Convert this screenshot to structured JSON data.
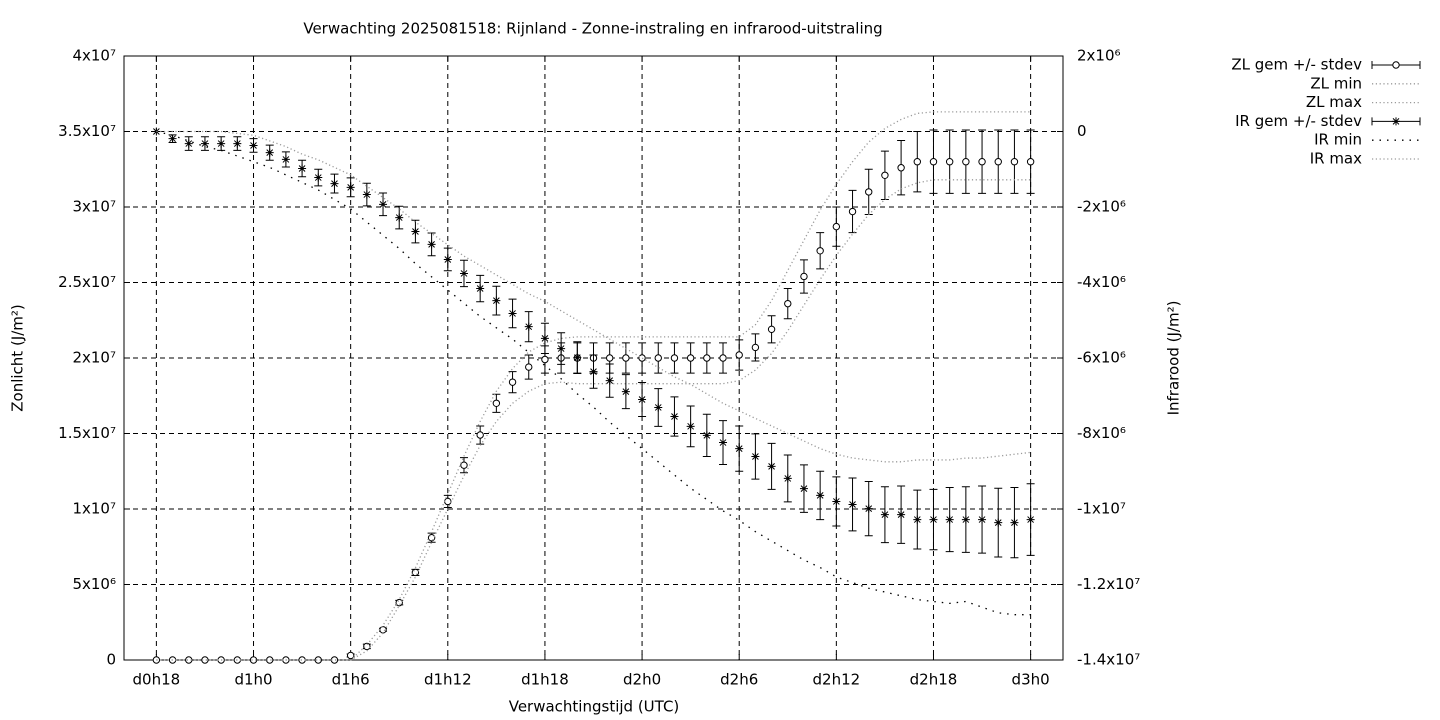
{
  "chart_data": {
    "type": "errorbar-line",
    "title": "Verwachting 2025081518: Rijnland - Zonne-instraling en infrarood-uitstraling",
    "xlabel": "Verwachtingstijd (UTC)",
    "ylabel": "Zonlicht (J/m²)",
    "y2label": "Infrarood (J/m²)",
    "xlim": [
      16,
      74
    ],
    "xticks": [
      {
        "value": 18,
        "label": "d0h18"
      },
      {
        "value": 24,
        "label": "d1h0"
      },
      {
        "value": 30,
        "label": "d1h6"
      },
      {
        "value": 36,
        "label": "d1h12"
      },
      {
        "value": 42,
        "label": "d1h18"
      },
      {
        "value": 48,
        "label": "d2h0"
      },
      {
        "value": 54,
        "label": "d2h6"
      },
      {
        "value": 60,
        "label": "d2h12"
      },
      {
        "value": 66,
        "label": "d2h18"
      },
      {
        "value": 72,
        "label": "d3h0"
      }
    ],
    "ylim": [
      0,
      40000000.0
    ],
    "yticks": [
      0,
      {
        "value": 5000000.0,
        "label": "5x10⁶"
      },
      {
        "value": 10000000.0,
        "label": "1x10⁷"
      },
      {
        "value": 15000000.0,
        "label": "1.5x10⁷"
      },
      {
        "value": 20000000.0,
        "label": "2x10⁷"
      },
      {
        "value": 25000000.0,
        "label": "2.5x10⁷"
      },
      {
        "value": 30000000.0,
        "label": "3x10⁷"
      },
      {
        "value": 35000000.0,
        "label": "3.5x10⁷"
      },
      {
        "value": 40000000.0,
        "label": "4x10⁷"
      }
    ],
    "y2lim": [
      -14000000.0,
      2000000.0
    ],
    "y2ticks": [
      {
        "value": -14000000.0,
        "label": "-1.4x10⁷"
      },
      {
        "value": -12000000.0,
        "label": "-1.2x10⁷"
      },
      {
        "value": -10000000.0,
        "label": "-1x10⁷"
      },
      {
        "value": -8000000.0,
        "label": "-8x10⁶"
      },
      {
        "value": -6000000.0,
        "label": "-6x10⁶"
      },
      {
        "value": -4000000.0,
        "label": "-4x10⁶"
      },
      {
        "value": -2000000.0,
        "label": "-2x10⁶"
      },
      0,
      {
        "value": 2000000.0,
        "label": "2x10⁶"
      }
    ],
    "grid": true,
    "legend": "top-right",
    "x": [
      18,
      19,
      20,
      21,
      22,
      23,
      24,
      25,
      26,
      27,
      28,
      29,
      30,
      31,
      32,
      33,
      34,
      35,
      36,
      37,
      38,
      39,
      40,
      41,
      42,
      43,
      44,
      45,
      46,
      47,
      48,
      49,
      50,
      51,
      52,
      53,
      54,
      55,
      56,
      57,
      58,
      59,
      60,
      61,
      62,
      63,
      64,
      65,
      66,
      67,
      68,
      69,
      70,
      71,
      72
    ],
    "series": [
      {
        "name": "ZL gem +/- stdev",
        "color": "#000000",
        "marker": "circle",
        "values": [
          0,
          0,
          0,
          0,
          0,
          0,
          0,
          0,
          0,
          0,
          0,
          0,
          300000.0,
          900000.0,
          2000000.0,
          3800000.0,
          5800000.0,
          8100000.0,
          10500000.0,
          12900000.0,
          14900000.0,
          17000000.0,
          18400000.0,
          19400000.0,
          19900000.0,
          20000000.0,
          20000000.0,
          20000000.0,
          20000000.0,
          20000000.0,
          20000000.0,
          20000000.0,
          20000000.0,
          20000000.0,
          20000000.0,
          20000000.0,
          20200000.0,
          20700000.0,
          21900000.0,
          23600000.0,
          25400000.0,
          27100000.0,
          28700000.0,
          29700000.0,
          31000000.0,
          32100000.0,
          32600000.0,
          33000000.0,
          33000000.0,
          33000000.0,
          33000000.0,
          33000000.0,
          33000000.0,
          33000000.0,
          33000000.0
        ],
        "errors": [
          0,
          0,
          0,
          0,
          0,
          0,
          0,
          0,
          0,
          0,
          0,
          0,
          100000.0,
          150000.0,
          100000.0,
          150000.0,
          200000.0,
          300000.0,
          400000.0,
          500000.0,
          600000.0,
          600000.0,
          700000.0,
          800000.0,
          900000.0,
          1000000.0,
          1000000.0,
          1000000.0,
          1000000.0,
          1000000.0,
          1000000.0,
          1000000.0,
          1000000.0,
          1000000.0,
          1000000.0,
          1000000.0,
          1000000.0,
          900000.0,
          900000.0,
          1000000.0,
          1100000.0,
          1200000.0,
          1300000.0,
          1400000.0,
          1500000.0,
          1600000.0,
          1800000.0,
          2000000.0,
          2100000.0,
          2100000.0,
          2100000.0,
          2100000.0,
          2100000.0,
          2100000.0,
          2100000.0
        ]
      },
      {
        "name": "ZL min",
        "color": "#9a9a9a",
        "dash": "dotted",
        "values": [
          0,
          0,
          0,
          0,
          0,
          0,
          0,
          0,
          0,
          0,
          0,
          0,
          0,
          600000.0,
          1800000.0,
          3600000.0,
          5500000.0,
          7800000.0,
          10000000.0,
          12200000.0,
          14200000.0,
          15800000.0,
          17000000.0,
          17800000.0,
          18300000.0,
          18400000.0,
          18300000.0,
          18300000.0,
          18300000.0,
          18300000.0,
          18300000.0,
          18300000.0,
          18300000.0,
          18300000.0,
          18300000.0,
          18300000.0,
          18500000.0,
          19200000.0,
          20300000.0,
          21800000.0,
          23500000.0,
          25200000.0,
          26800000.0,
          28200000.0,
          29500000.0,
          30500000.0,
          31200000.0,
          31600000.0,
          31800000.0,
          31800000.0,
          31800000.0,
          31800000.0,
          31800000.0,
          31800000.0,
          31800000.0
        ]
      },
      {
        "name": "ZL max",
        "color": "#9a9a9a",
        "dash": "dotted",
        "values": [
          0,
          0,
          0,
          0,
          0,
          0,
          0,
          0,
          0,
          0,
          0,
          0,
          0,
          1000000.0,
          2300000.0,
          4000000.0,
          6100000.0,
          8500000.0,
          11000000.0,
          13500000.0,
          15800000.0,
          17800000.0,
          19300000.0,
          20400000.0,
          21000000.0,
          21300000.0,
          21400000.0,
          21400000.0,
          21400000.0,
          21400000.0,
          21400000.0,
          21400000.0,
          21400000.0,
          21400000.0,
          21400000.0,
          21400000.0,
          21400000.0,
          22200000.0,
          23800000.0,
          25800000.0,
          27800000.0,
          29800000.0,
          31500000.0,
          33000000.0,
          34300000.0,
          35200000.0,
          35800000.0,
          36200000.0,
          36300000.0,
          36300000.0,
          36300000.0,
          36300000.0,
          36300000.0,
          36300000.0,
          36300000.0
        ]
      },
      {
        "name": "IR gem +/- stdev",
        "color": "#000000",
        "marker": "star",
        "axis": "y2",
        "values": [
          0,
          -190000.0,
          -320000.0,
          -320000.0,
          -320000.0,
          -320000.0,
          -370000.0,
          -560000.0,
          -740000.0,
          -980000.0,
          -1220000.0,
          -1380000.0,
          -1480000.0,
          -1670000.0,
          -1930000.0,
          -2280000.0,
          -2650000.0,
          -2990000.0,
          -3390000.0,
          -3760000.0,
          -4160000.0,
          -4480000.0,
          -4820000.0,
          -5170000.0,
          -5480000.0,
          -5750000.0,
          -5990000.0,
          -6360000.0,
          -6600000.0,
          -6890000.0,
          -7100000.0,
          -7310000.0,
          -7550000.0,
          -7810000.0,
          -8050000.0,
          -8240000.0,
          -8400000.0,
          -8610000.0,
          -8870000.0,
          -9190000.0,
          -9460000.0,
          -9640000.0,
          -9800000.0,
          -9880000.0,
          -9990000.0,
          -10150000.0,
          -10150000.0,
          -10280000.0,
          -10280000.0,
          -10280000.0,
          -10280000.0,
          -10280000.0,
          -10360000.0,
          -10360000.0,
          -10280000.0
        ],
        "errors": [
          0,
          100000.0,
          180000.0,
          180000.0,
          180000.0,
          180000.0,
          180000.0,
          200000.0,
          200000.0,
          220000.0,
          220000.0,
          250000.0,
          250000.0,
          300000.0,
          300000.0,
          300000.0,
          300000.0,
          300000.0,
          300000.0,
          350000.0,
          350000.0,
          380000.0,
          380000.0,
          400000.0,
          400000.0,
          420000.0,
          420000.0,
          440000.0,
          440000.0,
          450000.0,
          450000.0,
          500000.0,
          520000.0,
          540000.0,
          560000.0,
          580000.0,
          600000.0,
          600000.0,
          610000.0,
          620000.0,
          630000.0,
          640000.0,
          650000.0,
          700000.0,
          720000.0,
          740000.0,
          760000.0,
          780000.0,
          800000.0,
          850000.0,
          870000.0,
          890000.0,
          910000.0,
          930000.0,
          950000.0
        ]
      },
      {
        "name": "IR min",
        "color": "#000000",
        "dash": "sparse",
        "axis": "y2",
        "values": [
          0,
          -100000.0,
          -250000.0,
          -400000.0,
          -500000.0,
          -650000.0,
          -800000.0,
          -950000.0,
          -1150000.0,
          -1350000.0,
          -1550000.0,
          -1800000.0,
          -2050000.0,
          -2400000.0,
          -2750000.0,
          -3100000.0,
          -3500000.0,
          -3850000.0,
          -4200000.0,
          -4550000.0,
          -4900000.0,
          -5200000.0,
          -5500000.0,
          -5850000.0,
          -6200000.0,
          -6550000.0,
          -6950000.0,
          -7300000.0,
          -7700000.0,
          -8050000.0,
          -8400000.0,
          -8750000.0,
          -9100000.0,
          -9450000.0,
          -9750000.0,
          -10050000.0,
          -10300000.0,
          -10600000.0,
          -10850000.0,
          -11100000.0,
          -11350000.0,
          -11550000.0,
          -11800000.0,
          -11950000.0,
          -12100000.0,
          -12200000.0,
          -12300000.0,
          -12400000.0,
          -12450000.0,
          -12500000.0,
          -12450000.0,
          -12600000.0,
          -12750000.0,
          -12800000.0,
          -12800000.0
        ]
      },
      {
        "name": "IR max",
        "color": "#9a9a9a",
        "dash": "dotted",
        "axis": "y2",
        "values": [
          0,
          0,
          0,
          0,
          0,
          -50000.0,
          -100000.0,
          -250000.0,
          -400000.0,
          -600000.0,
          -750000.0,
          -950000.0,
          -1150000.0,
          -1450000.0,
          -1750000.0,
          -2050000.0,
          -2400000.0,
          -2700000.0,
          -3000000.0,
          -3300000.0,
          -3550000.0,
          -3800000.0,
          -4050000.0,
          -4300000.0,
          -4500000.0,
          -4750000.0,
          -5000000.0,
          -5250000.0,
          -5500000.0,
          -5750000.0,
          -6000000.0,
          -6250000.0,
          -6500000.0,
          -6700000.0,
          -6950000.0,
          -7200000.0,
          -7400000.0,
          -7600000.0,
          -7800000.0,
          -8000000.0,
          -8200000.0,
          -8400000.0,
          -8550000.0,
          -8650000.0,
          -8700000.0,
          -8750000.0,
          -8750000.0,
          -8700000.0,
          -8700000.0,
          -8700000.0,
          -8650000.0,
          -8650000.0,
          -8600000.0,
          -8550000.0,
          -8500000.0
        ]
      }
    ]
  }
}
